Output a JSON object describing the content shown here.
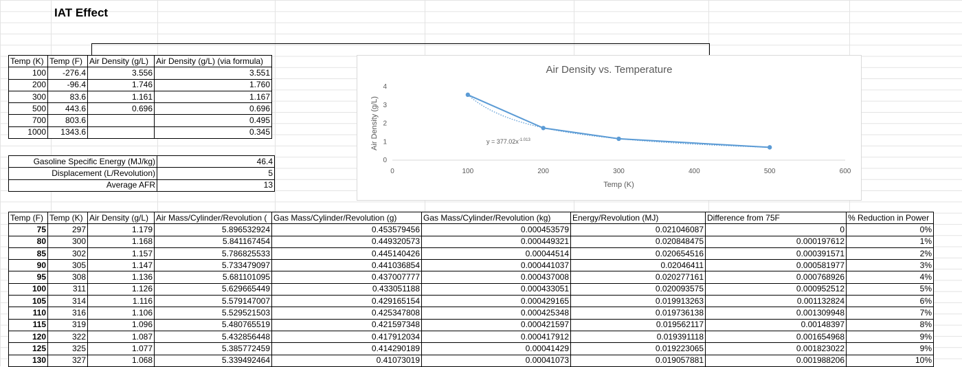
{
  "sheet": {
    "title": "IAT Effect"
  },
  "density_table": {
    "headers": [
      "Temp (K)",
      "Temp (F)",
      "Air Density (g/L)",
      "Air Density (g/L) (via formula)"
    ],
    "rows": [
      [
        "100",
        "-276.4",
        "3.556",
        "3.551"
      ],
      [
        "200",
        "-96.4",
        "1.746",
        "1.760"
      ],
      [
        "300",
        "83.6",
        "1.161",
        "1.167"
      ],
      [
        "500",
        "443.6",
        "0.696",
        "0.696"
      ],
      [
        "700",
        "803.6",
        "",
        "0.495"
      ],
      [
        "1000",
        "1343.6",
        "",
        "0.345"
      ]
    ]
  },
  "params_table": {
    "rows": [
      [
        "Gasoline Specific Energy (MJ/kg)",
        "46.4"
      ],
      [
        "Displacement (L/Revolution)",
        "5"
      ],
      [
        "Average AFR",
        "13"
      ]
    ]
  },
  "results_table": {
    "headers": [
      "Temp (F)",
      "Temp (K)",
      "Air Density (g/L)",
      "Air Mass/Cylinder/Revolution (",
      "Gas Mass/Cylinder/Revolution (g)",
      "Gas Mass/Cylinder/Revolution (kg)",
      "Energy/Revolution (MJ)",
      "Difference from 75F",
      "% Reduction in Power"
    ],
    "rows": [
      [
        "75",
        "297",
        "1.179",
        "5.896532924",
        "0.453579456",
        "0.000453579",
        "0.021046087",
        "0",
        "0%"
      ],
      [
        "80",
        "300",
        "1.168",
        "5.841167454",
        "0.449320573",
        "0.000449321",
        "0.020848475",
        "0.000197612",
        "1%"
      ],
      [
        "85",
        "302",
        "1.157",
        "5.786825533",
        "0.445140426",
        "0.00044514",
        "0.020654516",
        "0.000391571",
        "2%"
      ],
      [
        "90",
        "305",
        "1.147",
        "5.733479097",
        "0.441036854",
        "0.000441037",
        "0.02046411",
        "0.000581977",
        "3%"
      ],
      [
        "95",
        "308",
        "1.136",
        "5.681101095",
        "0.437007777",
        "0.000437008",
        "0.020277161",
        "0.000768926",
        "4%"
      ],
      [
        "100",
        "311",
        "1.126",
        "5.629665449",
        "0.433051188",
        "0.000433051",
        "0.020093575",
        "0.000952512",
        "5%"
      ],
      [
        "105",
        "314",
        "1.116",
        "5.579147007",
        "0.429165154",
        "0.000429165",
        "0.019913263",
        "0.001132824",
        "6%"
      ],
      [
        "110",
        "316",
        "1.106",
        "5.529521503",
        "0.425347808",
        "0.000425348",
        "0.019736138",
        "0.001309948",
        "7%"
      ],
      [
        "115",
        "319",
        "1.096",
        "5.480765519",
        "0.421597348",
        "0.000421597",
        "0.019562117",
        "0.00148397",
        "8%"
      ],
      [
        "120",
        "322",
        "1.087",
        "5.432856448",
        "0.417912034",
        "0.000417912",
        "0.019391118",
        "0.001654968",
        "9%"
      ],
      [
        "125",
        "325",
        "1.077",
        "5.385772459",
        "0.414290189",
        "0.00041429",
        "0.019223065",
        "0.001823022",
        "9%"
      ],
      [
        "130",
        "327",
        "1.068",
        "5.339492464",
        "0.41073019",
        "0.00041073",
        "0.019057881",
        "0.001988206",
        "10%"
      ]
    ]
  },
  "chart_data": {
    "type": "scatter",
    "title": "Air Density vs. Temperature",
    "xlabel": "Temp (K)",
    "ylabel": "Air Density (g/L)",
    "xlim": [
      0,
      600
    ],
    "ylim": [
      0,
      4
    ],
    "xticks": [
      0,
      100,
      200,
      300,
      400,
      500,
      600
    ],
    "yticks": [
      0,
      1,
      2,
      3,
      4
    ],
    "series": [
      {
        "x": [
          100,
          200,
          300,
          500
        ],
        "y": [
          3.556,
          1.746,
          1.161,
          0.696
        ],
        "line": "solid",
        "markers": true
      }
    ],
    "trendline": {
      "type": "power",
      "label_base": "y = 377.02x",
      "label_exp": "-1.013",
      "a": 377.02,
      "b": -1.013,
      "style": "dotted"
    },
    "grid": false,
    "legend": "none",
    "colors": {
      "series": "#5b9bd5",
      "axis_text": "#595959",
      "axis_line": "#d9d9d9"
    }
  }
}
